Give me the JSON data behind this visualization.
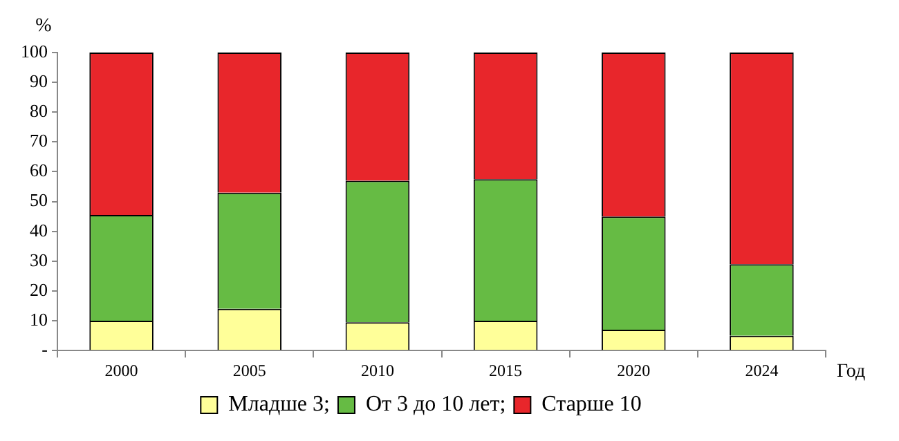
{
  "chart_data": {
    "type": "bar",
    "stacked": true,
    "ylabel": "%",
    "xlabel": "Год",
    "categories": [
      "2000",
      "2005",
      "2010",
      "2015",
      "2020",
      "2024"
    ],
    "series": [
      {
        "name": "Младше 3;",
        "color": "#ffff99",
        "values": [
          10,
          14,
          9.5,
          10,
          7,
          5
        ]
      },
      {
        "name": "От 3 до 10 лет;",
        "color": "#66bb44",
        "values": [
          35.5,
          39,
          47.5,
          47.5,
          38,
          24
        ]
      },
      {
        "name": "Старше 10",
        "color": "#e8262b",
        "values": [
          54.5,
          47,
          43,
          42.5,
          55,
          71
        ]
      }
    ],
    "ylim": [
      0,
      100
    ],
    "yticks": [
      {
        "value": 0,
        "label": "-"
      },
      10,
      20,
      30,
      40,
      50,
      60,
      70,
      80,
      90,
      100
    ],
    "legend": "bottom"
  }
}
